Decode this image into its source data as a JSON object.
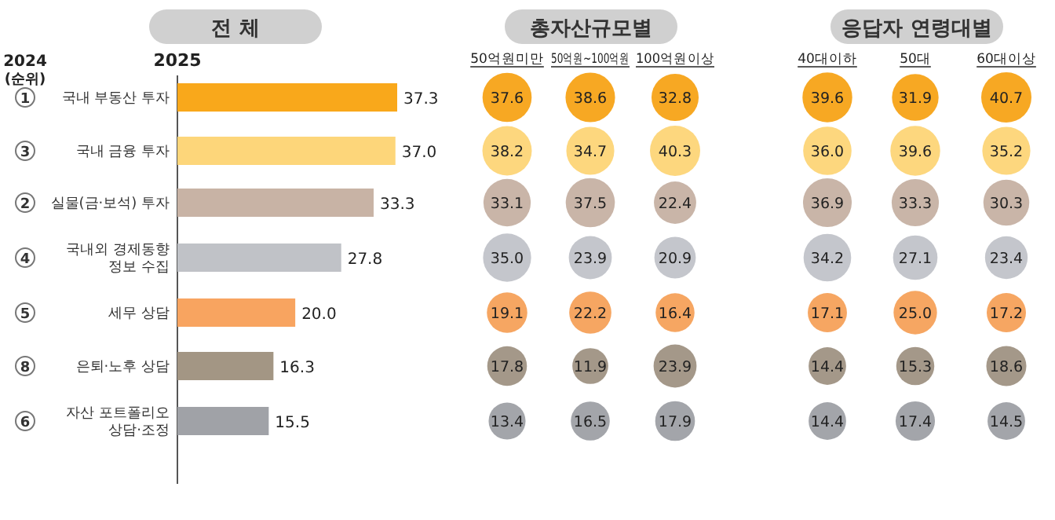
{
  "chart_data": [
    {
      "type": "bar",
      "orientation": "horizontal",
      "title": "전 체",
      "ylabel": "2025",
      "categories": [
        "국내 부동산 투자",
        "국내 금융 투자",
        "실물(금·보석) 투자",
        "국내외 경제동향\n정보 수집",
        "세무 상담",
        "은퇴·노후 상담",
        "자산 포트폴리오\n상담·조정"
      ],
      "values": [
        37.3,
        37.0,
        33.3,
        27.8,
        20.0,
        16.3,
        15.5
      ],
      "colors": [
        "#f9a81b",
        "#fdd67a",
        "#c8b3a5",
        "#c0c2c7",
        "#f8a460",
        "#a39684",
        "#a0a2a7"
      ],
      "value_labels": [
        "37.3",
        "37.0",
        "33.3",
        "27.8",
        "20.0",
        "16.3",
        "15.5"
      ],
      "annotations": [
        "2024",
        "(순위)",
        "1",
        "3",
        "2",
        "4",
        "5",
        "8",
        "6"
      ]
    },
    {
      "type": "heatmap",
      "title": "총자산규모별",
      "categories": [
        "50억원미만",
        "50억원~100억원",
        "100억원이상"
      ],
      "y_categories": [
        null,
        null,
        null,
        null,
        null,
        null,
        null
      ],
      "colors": [
        "#f7a823",
        "#fdd77e",
        "#c9b5a8",
        "#c4c6cc",
        "#f6a662",
        "#a49889",
        "#a3a5aa"
      ],
      "cells": [
        [
          37.6,
          38.6,
          32.8
        ],
        [
          38.2,
          34.7,
          40.3
        ],
        [
          33.1,
          37.5,
          22.4
        ],
        [
          35.0,
          23.9,
          20.9
        ],
        [
          19.1,
          22.2,
          16.4
        ],
        [
          17.8,
          11.9,
          23.9
        ],
        [
          13.4,
          16.5,
          17.9
        ]
      ],
      "cell_labels": [
        [
          "37.6",
          "38.6",
          "32.8"
        ],
        [
          "38.2",
          "34.7",
          "40.3"
        ],
        [
          "33.1",
          "37.5",
          "22.4"
        ],
        [
          "35.0",
          "23.9",
          "20.9"
        ],
        [
          "19.1",
          "22.2",
          "16.4"
        ],
        [
          "17.8",
          "11.9",
          "23.9"
        ],
        [
          "13.4",
          "16.5",
          "17.9"
        ]
      ]
    },
    {
      "type": "heatmap",
      "title": "응답자 연령대별",
      "categories": [
        "40대이하",
        "50대",
        "60대이상"
      ],
      "y_categories": [
        null,
        null,
        null,
        null,
        null,
        null,
        null
      ],
      "colors": [
        "#f7a823",
        "#fdd77e",
        "#c9b5a8",
        "#c4c6cc",
        "#f6a662",
        "#a49889",
        "#a3a5aa"
      ],
      "cells": [
        [
          39.6,
          31.9,
          40.7
        ],
        [
          36.0,
          39.6,
          35.2
        ],
        [
          36.9,
          33.3,
          30.3
        ],
        [
          34.2,
          27.1,
          23.4
        ],
        [
          17.1,
          25.0,
          17.2
        ],
        [
          14.4,
          15.3,
          18.6
        ],
        [
          14.4,
          17.4,
          14.5
        ]
      ],
      "cell_labels": [
        [
          "39.6",
          "31.9",
          "40.7"
        ],
        [
          "36.0",
          "39.6",
          "35.2"
        ],
        [
          "36.9",
          "33.3",
          "30.3"
        ],
        [
          "34.2",
          "27.1",
          "23.4"
        ],
        [
          "17.1",
          "25.0",
          "17.2"
        ],
        [
          "14.4",
          "15.3",
          "18.6"
        ],
        [
          "14.4",
          "17.4",
          "14.5"
        ]
      ]
    }
  ]
}
